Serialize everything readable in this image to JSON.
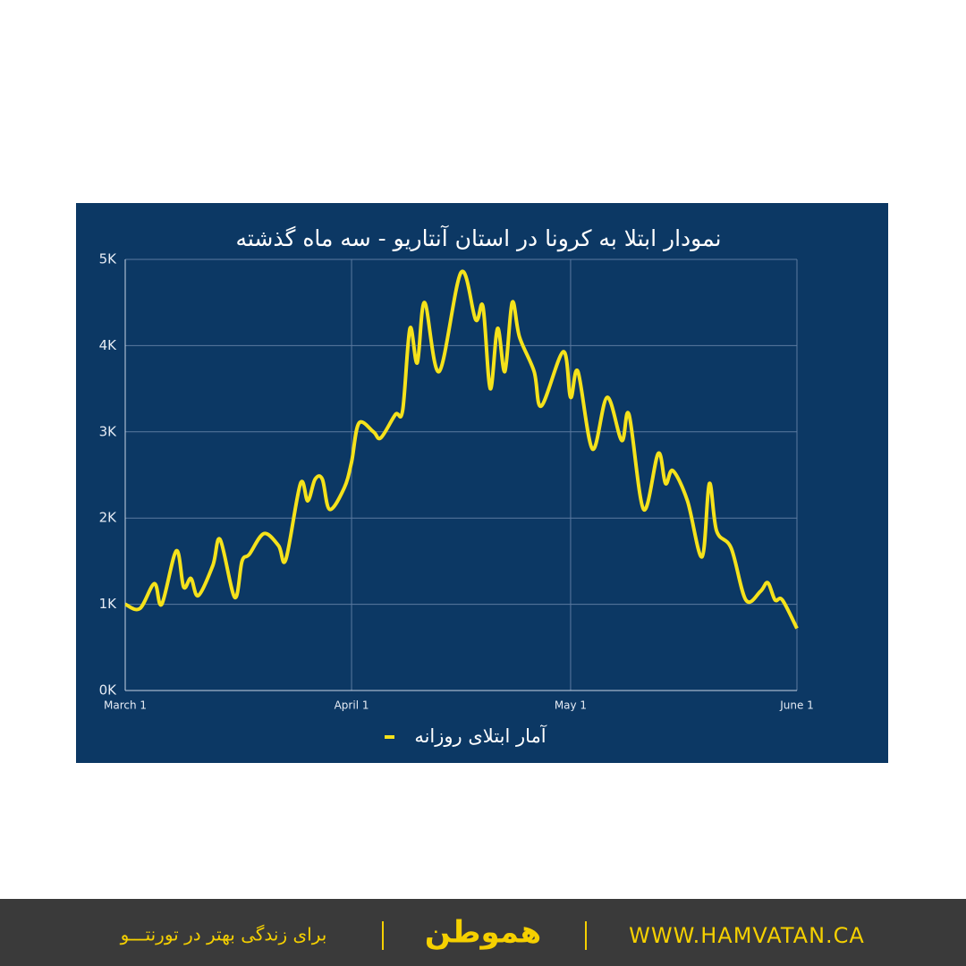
{
  "chart_data": {
    "type": "line",
    "title": "نمودار ابتلا به کرونا در استان آنتاریو - سه ماه گذشته",
    "x": [
      0,
      2,
      4,
      5,
      7,
      8,
      9,
      10,
      12,
      13,
      15,
      16,
      17,
      19,
      21,
      22,
      24,
      25,
      26,
      27,
      28,
      30,
      31,
      32,
      34,
      35,
      37,
      38,
      39,
      40,
      41,
      43,
      46,
      48,
      49,
      50,
      51,
      52,
      53,
      54,
      56,
      57,
      60,
      61,
      62,
      64,
      66,
      68,
      69,
      71,
      73,
      74,
      75,
      77,
      79,
      80,
      81,
      83,
      85,
      87,
      88,
      89,
      90,
      92
    ],
    "series": [
      {
        "name": "آمار ابتلای روزانه",
        "color": "#f5e21b",
        "values": [
          1000,
          950,
          1240,
          1000,
          1620,
          1200,
          1300,
          1100,
          1450,
          1750,
          1080,
          1500,
          1580,
          1820,
          1680,
          1520,
          2400,
          2200,
          2450,
          2450,
          2100,
          2350,
          2650,
          3100,
          3000,
          2930,
          3200,
          3250,
          4200,
          3800,
          4500,
          3700,
          4850,
          4300,
          4450,
          3500,
          4200,
          3700,
          4500,
          4100,
          3700,
          3300,
          3930,
          3400,
          3700,
          2800,
          3400,
          2900,
          3200,
          2100,
          2750,
          2400,
          2550,
          2200,
          1550,
          2400,
          1850,
          1650,
          1050,
          1150,
          1250,
          1050,
          1050,
          720
        ]
      }
    ],
    "xlim": [
      0,
      92
    ],
    "xticks": [
      {
        "value": 0,
        "label": "March 1"
      },
      {
        "value": 31,
        "label": "April 1"
      },
      {
        "value": 61,
        "label": "May 1"
      },
      {
        "value": 92,
        "label": "June 1"
      }
    ],
    "ylim": [
      0,
      5000
    ],
    "yticks": [
      {
        "value": 0,
        "label": "0K"
      },
      {
        "value": 1000,
        "label": "1K"
      },
      {
        "value": 2000,
        "label": "2K"
      },
      {
        "value": 3000,
        "label": "3K"
      },
      {
        "value": 4000,
        "label": "4K"
      },
      {
        "value": 5000,
        "label": "5K"
      }
    ],
    "grid": true
  },
  "footer": {
    "slogan": "برای زندگی بهتر در تورنتـــو",
    "logo": "هموطن",
    "url": "WWW.HAMVATAN.CA"
  }
}
